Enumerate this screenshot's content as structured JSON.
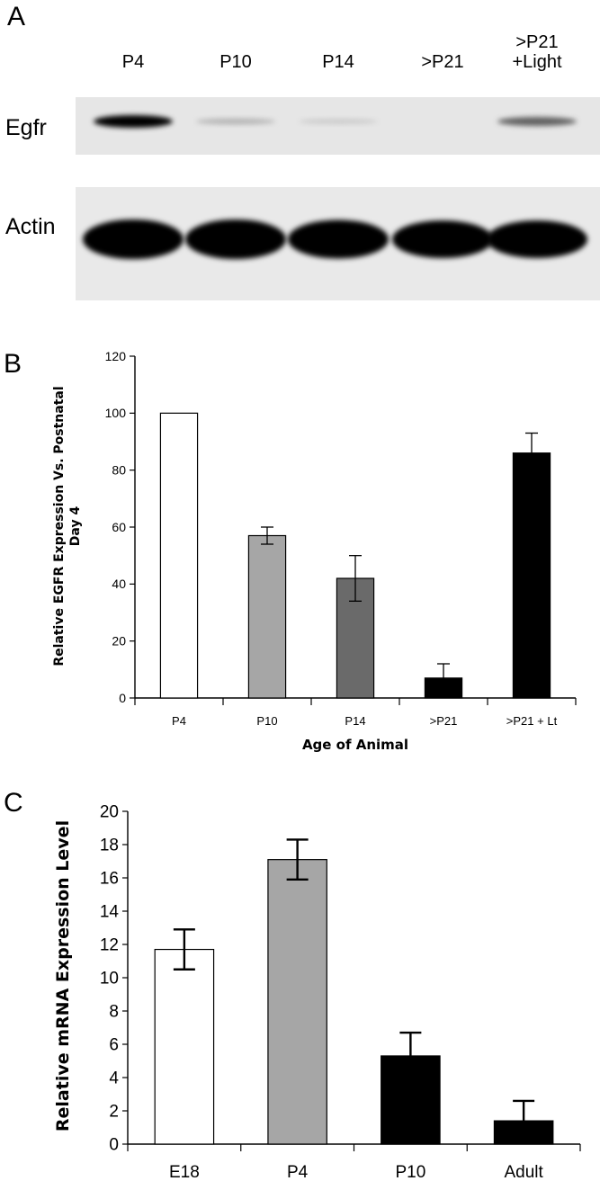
{
  "panel_a": {
    "letter": "A",
    "lanes": [
      "P4",
      "P10",
      "P14",
      ">P21",
      ">P21\n+Light"
    ],
    "rows": [
      {
        "label": "Egfr",
        "band_intensity": [
          1.0,
          0.25,
          0.15,
          0.0,
          0.6
        ]
      },
      {
        "label": "Actin",
        "band_intensity": [
          1.0,
          1.0,
          0.95,
          0.9,
          0.9
        ]
      }
    ]
  },
  "panel_b_letter": "B",
  "panel_c_letter": "C",
  "chart_data": [
    {
      "type": "bar",
      "panel": "B",
      "categories": [
        "P4",
        "P10",
        "P14",
        ">P21",
        ">P21 + Lt"
      ],
      "values": [
        100,
        57,
        42,
        7,
        86
      ],
      "errors": [
        0,
        3,
        8,
        5,
        7
      ],
      "colors": [
        "#ffffff",
        "#a6a6a6",
        "#6a6a6a",
        "#000000",
        "#000000"
      ],
      "ylim": [
        0,
        120
      ],
      "yticks": [
        0,
        20,
        40,
        60,
        80,
        100,
        120
      ],
      "xlabel": "Age of Animal",
      "ylabel": "Relative EGFR Expression Vs. Postnatal Day 4",
      "ylabel_lines": [
        "Relative EGFR Expression Vs. Postnatal",
        "Day 4"
      ]
    },
    {
      "type": "bar",
      "panel": "C",
      "categories": [
        "E18",
        "P4",
        "P10",
        "Adult"
      ],
      "values": [
        11.7,
        17.1,
        5.3,
        1.4
      ],
      "errors": [
        1.2,
        1.2,
        1.4,
        1.2
      ],
      "colors": [
        "#ffffff",
        "#a6a6a6",
        "#000000",
        "#000000"
      ],
      "ylim": [
        0,
        20
      ],
      "yticks": [
        0,
        2,
        4,
        6,
        8,
        10,
        12,
        14,
        16,
        18,
        20
      ],
      "xlabel": "",
      "ylabel": "Relative mRNA Expression Level"
    }
  ]
}
